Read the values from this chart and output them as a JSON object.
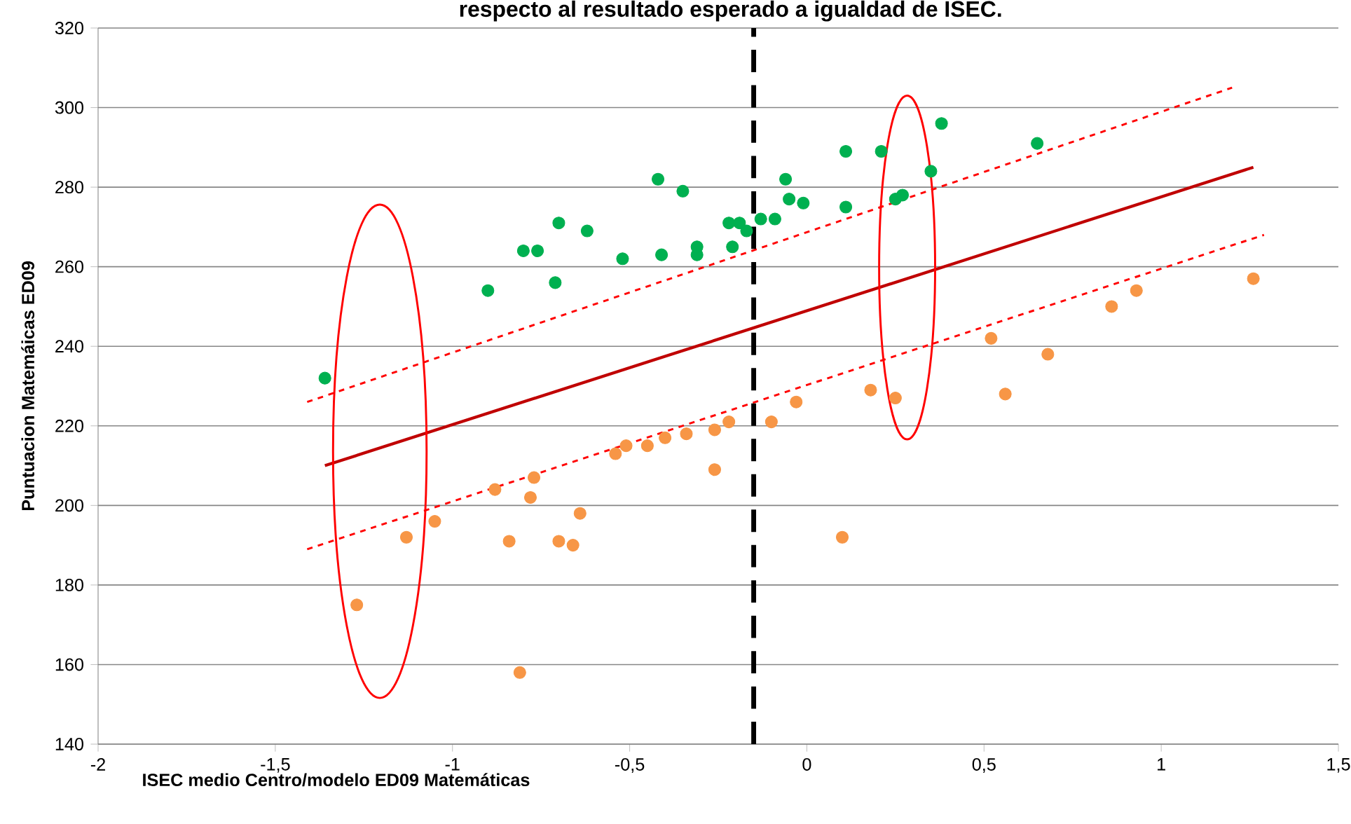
{
  "chart_data": {
    "type": "scatter",
    "title": "respecto al resultado esperado a igualdad de ISEC.",
    "xlabel": "ISEC medio Centro/modelo ED09 Matemáticas",
    "ylabel": "Puntuacion Matemáicas ED09",
    "xlim": [
      -2,
      1.5
    ],
    "ylim": [
      140,
      320
    ],
    "xticks": [
      {
        "value": -2,
        "label": "-2"
      },
      {
        "value": -1.5,
        "label": "-1,5"
      },
      {
        "value": -1,
        "label": "-1"
      },
      {
        "value": -0.5,
        "label": "-0,5"
      },
      {
        "value": 0,
        "label": "0"
      },
      {
        "value": 0.5,
        "label": "0,5"
      },
      {
        "value": 1,
        "label": "1"
      },
      {
        "value": 1.5,
        "label": "1,5"
      }
    ],
    "yticks": [
      140,
      160,
      180,
      200,
      220,
      240,
      260,
      280,
      300,
      320
    ],
    "grid": "y",
    "marker": "circle",
    "ref_lines": [
      {
        "axis": "x",
        "value": -0.15,
        "color": "#000000",
        "line_style": "dashed"
      }
    ],
    "series": [
      {
        "color": "#00b050",
        "x": [
          -1.36,
          -0.9,
          -0.8,
          -0.76,
          -0.7,
          -0.71,
          -0.62,
          -0.52,
          -0.42,
          -0.41,
          -0.35,
          -0.31,
          -0.31,
          -0.22,
          -0.21,
          -0.19,
          -0.17,
          -0.13,
          -0.09,
          -0.06,
          -0.05,
          -0.01,
          0.11,
          0.11,
          0.21,
          0.25,
          0.27,
          0.35,
          0.38,
          0.65
        ],
        "values": [
          232,
          254,
          264,
          264,
          271,
          256,
          269,
          262,
          282,
          263,
          279,
          263,
          265,
          271,
          265,
          271,
          269,
          272,
          272,
          282,
          277,
          276,
          289,
          275,
          289,
          277,
          278,
          284,
          296,
          291
        ]
      },
      {
        "color": "#f79646",
        "x": [
          -1.27,
          -1.13,
          -1.05,
          -0.88,
          -0.84,
          -0.77,
          -0.78,
          -0.7,
          -0.66,
          -0.64,
          -0.81,
          -0.54,
          -0.51,
          -0.45,
          -0.4,
          -0.34,
          -0.26,
          -0.22,
          -0.26,
          -0.1,
          -0.03,
          0.1,
          0.18,
          0.25,
          0.52,
          0.56,
          0.68,
          0.86,
          0.93,
          1.26
        ],
        "values": [
          175,
          192,
          196,
          204,
          191,
          207,
          202,
          191,
          190,
          198,
          158,
          213,
          215,
          215,
          217,
          218,
          219,
          221,
          209,
          221,
          226,
          192,
          229,
          227,
          242,
          228,
          238,
          250,
          254,
          257
        ]
      },
      {
        "type": "line",
        "color": "#c00000",
        "line_style": "solid",
        "marker": "none",
        "x": [
          -1.36,
          1.26
        ],
        "values": [
          210,
          285
        ]
      },
      {
        "type": "line",
        "color": "#ff0000",
        "line_style": "dashed",
        "marker": "none",
        "x": [
          -1.41,
          1.2
        ],
        "values": [
          226,
          305
        ]
      },
      {
        "type": "line",
        "color": "#ff0000",
        "line_style": "dashed",
        "marker": "none",
        "x": [
          -1.41,
          1.29
        ],
        "values": [
          189,
          268
        ]
      }
    ]
  }
}
